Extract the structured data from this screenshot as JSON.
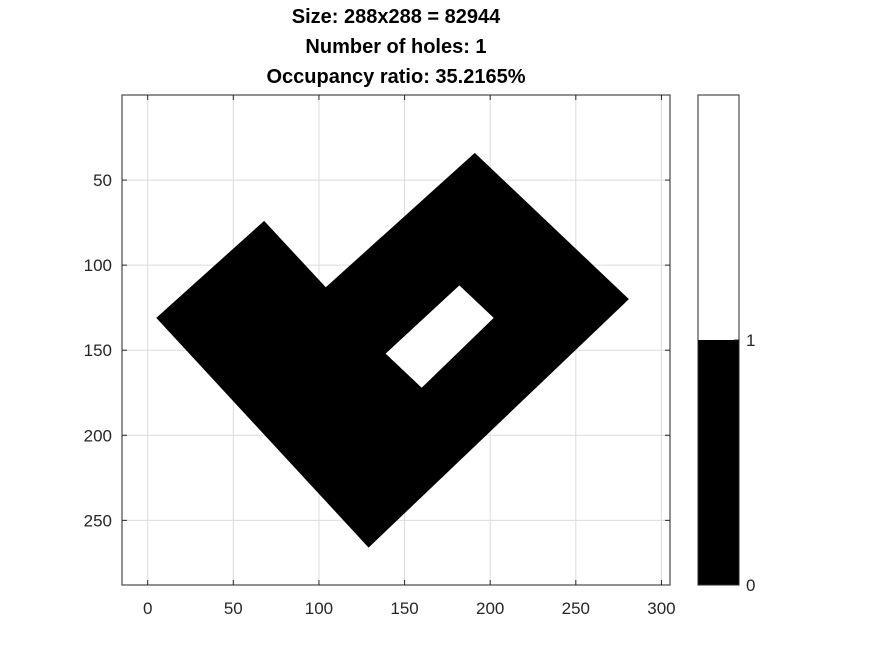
{
  "chart_data": {
    "type": "heatmap",
    "title_lines": [
      "Size: 288x288 = 82944",
      "Number of holes: 1",
      "Occupancy ratio: 35.2165%"
    ],
    "xlabel": "",
    "ylabel": "",
    "xlim": [
      -15,
      305
    ],
    "ylim": [
      288,
      0
    ],
    "x_ticks": [
      0,
      50,
      100,
      150,
      200,
      250,
      300
    ],
    "y_ticks": [
      50,
      100,
      150,
      200,
      250
    ],
    "grid": true,
    "image_size": [
      288,
      288
    ],
    "values": [
      0,
      1
    ],
    "colors": {
      "0": "#000000",
      "1": "#ffffff"
    },
    "shape_outline": [
      [
        5,
        131
      ],
      [
        68,
        74
      ],
      [
        104,
        113
      ],
      [
        191,
        34
      ],
      [
        281,
        120
      ],
      [
        129,
        266
      ]
    ],
    "hole_outline": [
      [
        182,
        112
      ],
      [
        202,
        131
      ],
      [
        160,
        172
      ],
      [
        139,
        152
      ]
    ],
    "colorbar": {
      "ticks": [
        0,
        1
      ],
      "ylim": [
        0,
        2
      ],
      "segments": [
        {
          "from": 0,
          "to": 1,
          "color": "#000000"
        },
        {
          "from": 1,
          "to": 2,
          "color": "#ffffff"
        }
      ]
    }
  }
}
